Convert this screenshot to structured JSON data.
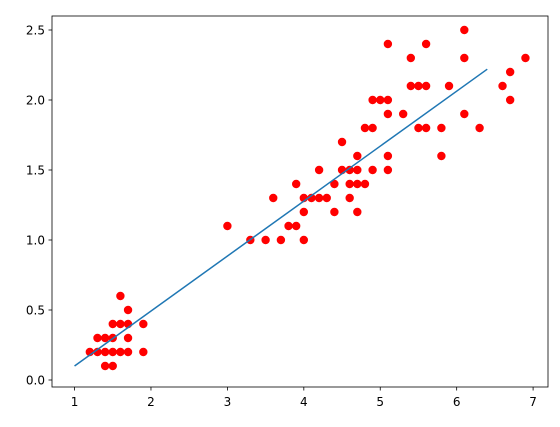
{
  "chart_data": {
    "type": "scatter",
    "xlim": [
      0.705,
      7.195
    ],
    "ylim": [
      -0.05,
      2.6
    ],
    "xticks": [
      1,
      2,
      3,
      4,
      5,
      6,
      7
    ],
    "yticks": [
      {
        "value": 0,
        "label": "0.0"
      },
      0.5,
      {
        "value": 1,
        "label": "1.0"
      },
      1.5,
      {
        "value": 2,
        "label": "2.0"
      },
      2.5
    ],
    "grid": false,
    "series": [
      {
        "type": "scatter",
        "color": "#ff0000",
        "x": [
          1.2,
          1.3,
          1.3,
          1.4,
          1.4,
          1.4,
          1.5,
          1.5,
          1.5,
          1.5,
          1.6,
          1.6,
          1.6,
          1.7,
          1.7,
          1.7,
          1.7,
          1.9,
          1.9,
          3.0,
          3.3,
          3.5,
          3.6,
          3.7,
          3.8,
          3.9,
          3.9,
          4.0,
          4.0,
          4.0,
          4.1,
          4.2,
          4.2,
          4.3,
          4.4,
          4.4,
          4.5,
          4.5,
          4.6,
          4.6,
          4.6,
          4.7,
          4.7,
          4.7,
          4.7,
          4.8,
          4.8,
          4.9,
          4.9,
          4.9,
          5.0,
          5.1,
          5.1,
          5.1,
          5.1,
          5.1,
          5.3,
          5.4,
          5.4,
          5.5,
          5.5,
          5.6,
          5.6,
          5.6,
          5.8,
          5.8,
          5.9,
          6.1,
          6.1,
          6.1,
          6.3,
          6.6,
          6.7,
          6.7,
          6.9
        ],
        "values": [
          0.2,
          0.2,
          0.3,
          0.2,
          0.1,
          0.3,
          0.1,
          0.2,
          0.3,
          0.4,
          0.2,
          0.4,
          0.6,
          0.2,
          0.3,
          0.4,
          0.5,
          0.2,
          0.4,
          1.1,
          1.0,
          1.0,
          1.3,
          1.0,
          1.1,
          1.1,
          1.4,
          1.0,
          1.2,
          1.3,
          1.3,
          1.3,
          1.5,
          1.3,
          1.2,
          1.4,
          1.5,
          1.7,
          1.3,
          1.4,
          1.5,
          1.2,
          1.4,
          1.5,
          1.6,
          1.4,
          1.8,
          1.5,
          1.8,
          2.0,
          2.0,
          1.5,
          1.6,
          1.9,
          2.0,
          2.4,
          1.9,
          2.1,
          2.3,
          1.8,
          2.1,
          1.8,
          2.1,
          2.4,
          1.6,
          1.8,
          2.1,
          1.9,
          2.3,
          2.5,
          1.8,
          2.1,
          2.0,
          2.2,
          2.3
        ]
      },
      {
        "type": "line",
        "color": "#1f77b4",
        "x": [
          1.0,
          6.4
        ],
        "values": [
          0.1,
          2.22
        ]
      }
    ]
  }
}
